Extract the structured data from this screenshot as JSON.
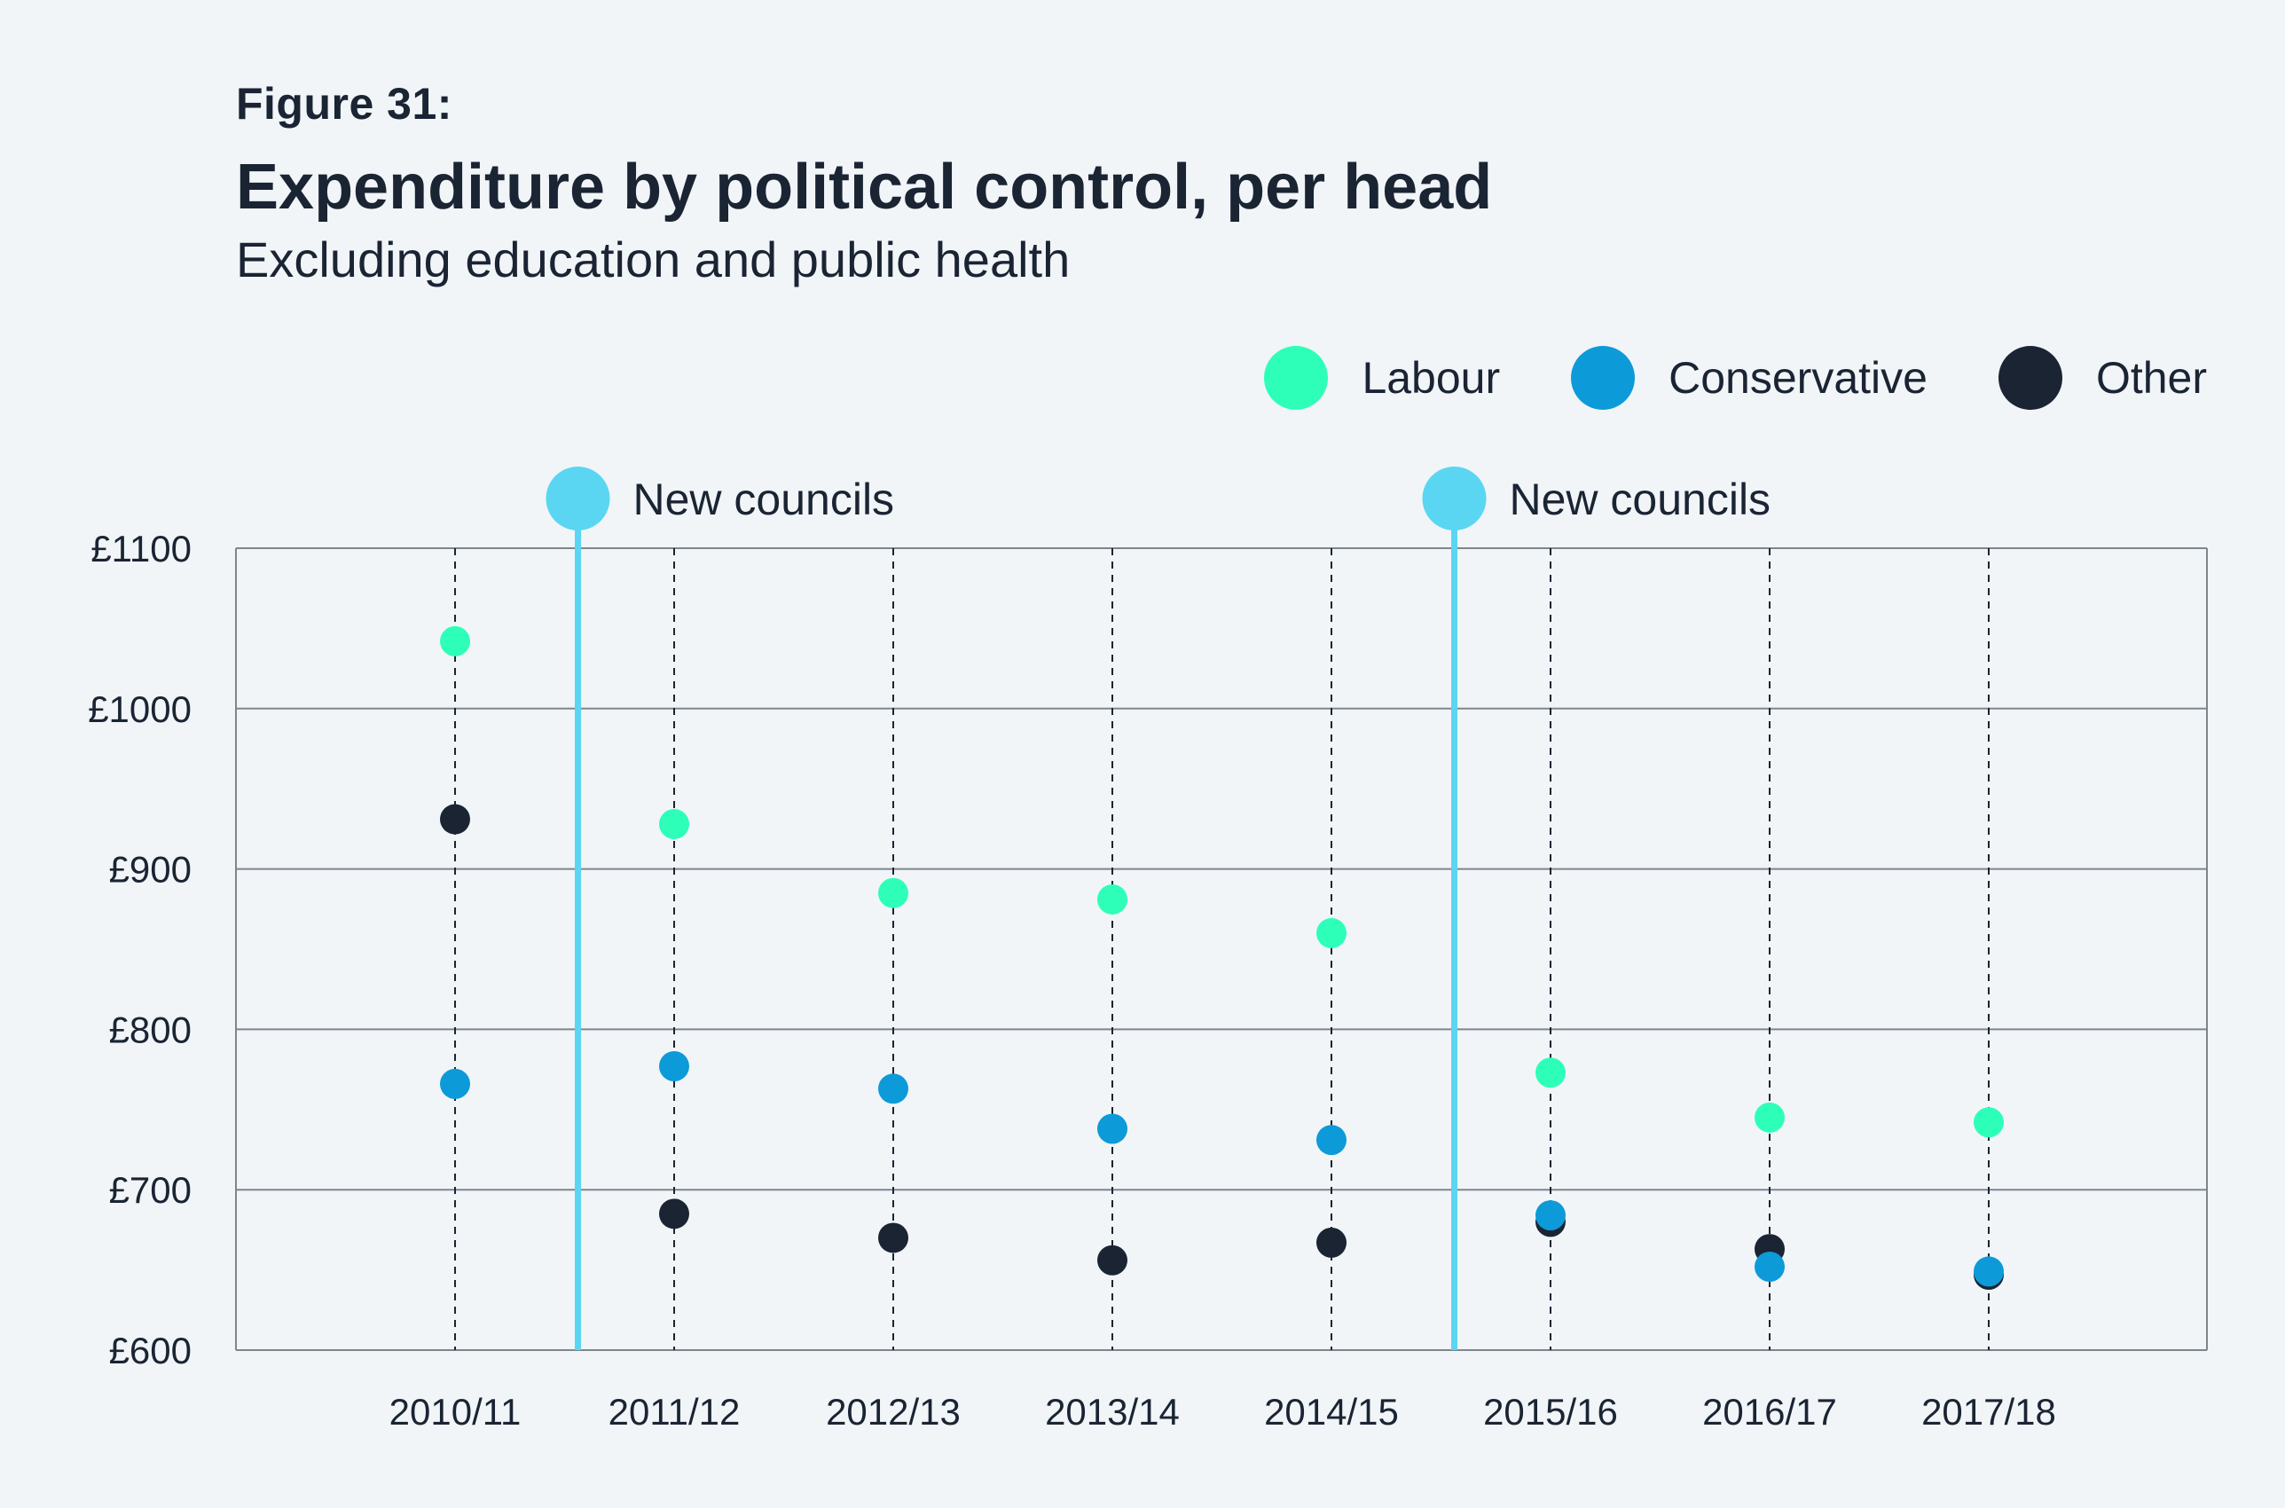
{
  "figure_label": "Figure 31:",
  "title": "Expenditure by political control, per head",
  "subtitle": "Excluding education and public health",
  "legend": [
    {
      "name": "Labour",
      "color": "#2effb8"
    },
    {
      "name": "Conservative",
      "color": "#0d9ad8"
    },
    {
      "name": "Other",
      "color": "#1a2433"
    }
  ],
  "chart_data": {
    "type": "scatter",
    "title": "Expenditure by political control, per head",
    "subtitle": "Excluding education and public health",
    "xlabel": "",
    "ylabel": "",
    "categories": [
      "2010/11",
      "2011/12",
      "2012/13",
      "2013/14",
      "2014/15",
      "2015/16",
      "2016/17",
      "2017/18"
    ],
    "yticks": [
      "£600",
      "£700",
      "£800",
      "£900",
      "£1000",
      "£1100"
    ],
    "ylim": [
      600,
      1100
    ],
    "series": [
      {
        "name": "Labour",
        "color": "#2effb8",
        "values": [
          1042,
          928,
          885,
          881,
          860,
          773,
          745,
          742
        ]
      },
      {
        "name": "Conservative",
        "color": "#0d9ad8",
        "values": [
          766,
          777,
          763,
          738,
          731,
          684,
          652,
          649
        ]
      },
      {
        "name": "Other",
        "color": "#1a2433",
        "values": [
          931,
          685,
          670,
          656,
          667,
          680,
          663,
          647
        ]
      }
    ],
    "annotations": [
      {
        "label": "New councils",
        "after_category_index": 0,
        "color": "#5ad6f2"
      },
      {
        "label": "New councils",
        "after_category_index": 4,
        "color": "#5ad6f2"
      }
    ],
    "grid": true,
    "legend_position": "top-right"
  }
}
